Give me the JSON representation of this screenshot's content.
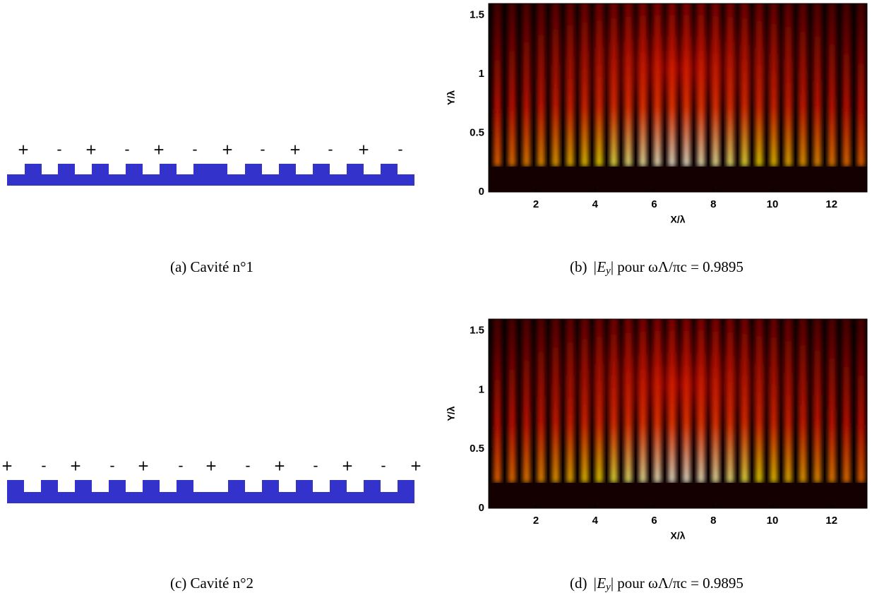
{
  "panels": [
    {
      "type": "diagram",
      "signs": [
        "+",
        "-",
        "+",
        "-",
        "+",
        "-",
        "+",
        "-",
        "+",
        "-",
        "+",
        "-"
      ],
      "caption": "(a) Cavité n°1"
    },
    {
      "type": "heatmap",
      "xlabel": "X/λ",
      "ylabel": "Y/λ",
      "xlim": [
        0.4,
        13.2
      ],
      "ylim": [
        0,
        1.6
      ],
      "xticks": [
        2,
        4,
        6,
        8,
        10,
        12
      ],
      "yticks": [
        0,
        0.5,
        1,
        1.5
      ],
      "caption": {
        "label": "(b)",
        "pre": "|E",
        "sub": "y",
        "post": "| pour ωΛ/πc = 0.9895"
      }
    },
    {
      "type": "diagram",
      "signs": [
        "+",
        "-",
        "+",
        "-",
        "+",
        "-",
        "+",
        "-",
        "+",
        "-",
        "+",
        "-",
        "+"
      ],
      "caption": "(c) Cavité n°2"
    },
    {
      "type": "heatmap",
      "xlabel": "X/λ",
      "ylabel": "Y/λ",
      "xlim": [
        0.4,
        13.2
      ],
      "ylim": [
        0,
        1.6
      ],
      "xticks": [
        2,
        4,
        6,
        8,
        10,
        12
      ],
      "yticks": [
        0,
        0.5,
        1,
        1.5
      ],
      "caption": {
        "label": "(d)",
        "pre": "|E",
        "sub": "y",
        "post": "| pour ωΛ/πc = 0.9895"
      }
    }
  ]
}
